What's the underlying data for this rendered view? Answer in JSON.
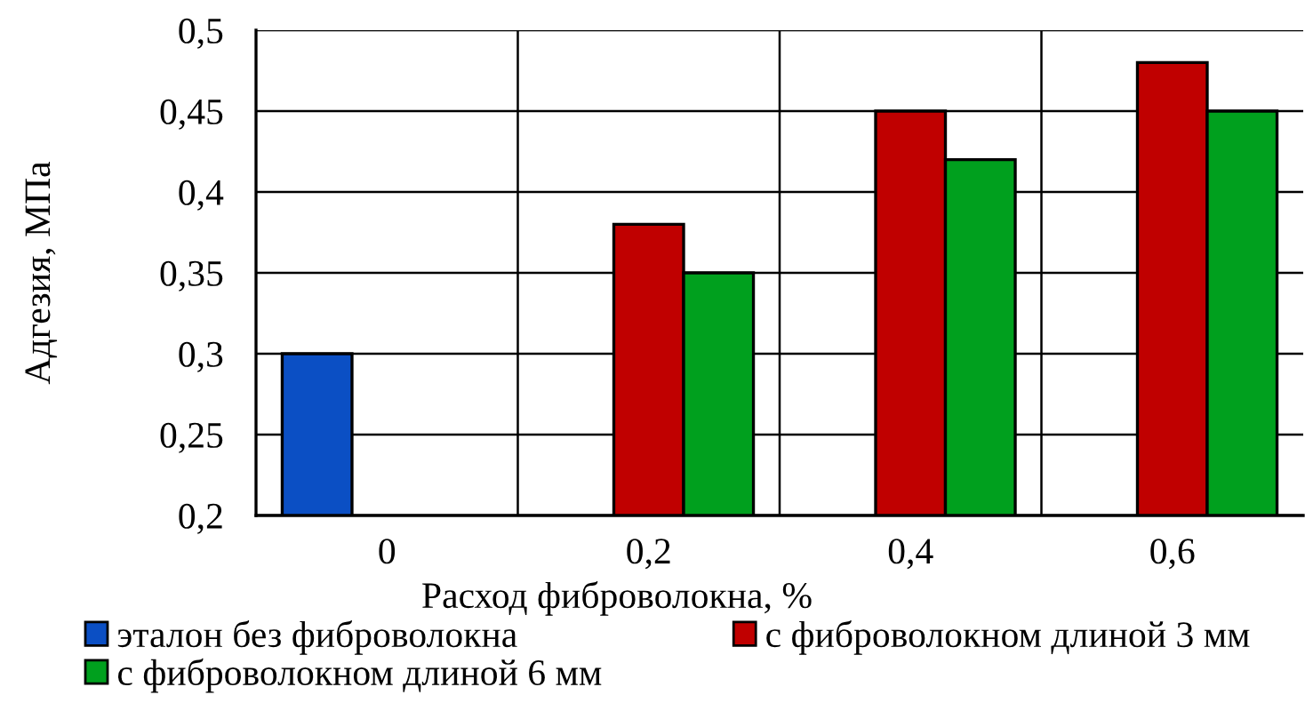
{
  "chart_data": {
    "type": "bar",
    "xlabel": "Расход фиброволокна, %",
    "ylabel": "Адгезия, МПа",
    "categories": [
      "0",
      "0,2",
      "0,4",
      "0,6"
    ],
    "series": [
      {
        "name": "эталон без фиброволокна",
        "color": "#0b4fc4",
        "values": [
          0.3,
          null,
          null,
          null
        ]
      },
      {
        "name": "с фиброволокном длиной 3 мм",
        "color": "#c00000",
        "values": [
          null,
          0.38,
          0.45,
          0.48
        ]
      },
      {
        "name": "с фиброволокном длиной 6 мм",
        "color": "#00a01e",
        "values": [
          null,
          0.35,
          0.42,
          0.45
        ]
      }
    ],
    "ylim": [
      0.2,
      0.5
    ],
    "yticks": [
      {
        "value": 0.2,
        "label": "0,2"
      },
      {
        "value": 0.25,
        "label": "0,25"
      },
      {
        "value": 0.3,
        "label": "0,3"
      },
      {
        "value": 0.35,
        "label": "0,35"
      },
      {
        "value": 0.4,
        "label": "0,4"
      },
      {
        "value": 0.45,
        "label": "0,45"
      },
      {
        "value": 0.5,
        "label": "0,5"
      }
    ],
    "grid": true,
    "legend": "bottom"
  }
}
